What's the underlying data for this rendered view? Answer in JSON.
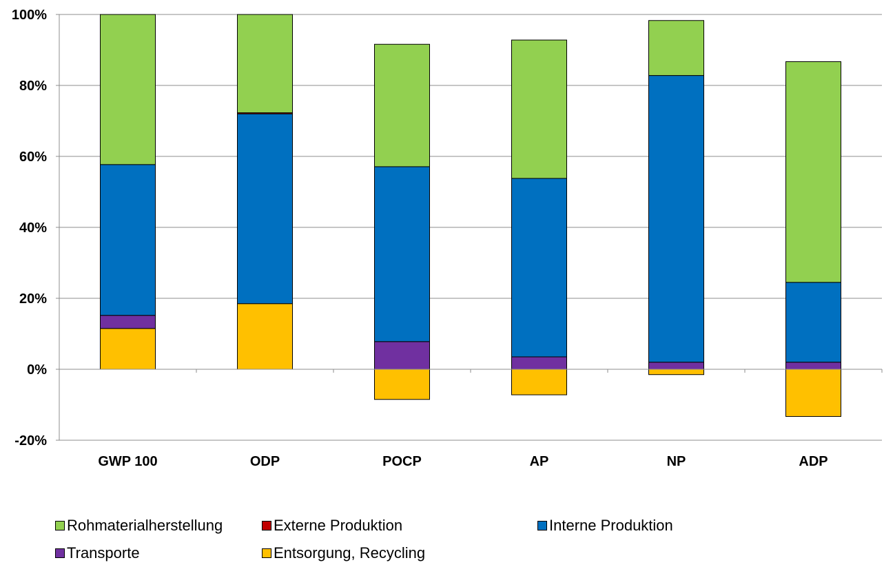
{
  "chart_data": {
    "type": "bar",
    "stacked": true,
    "categories": [
      "GWP 100",
      "ODP",
      "POCP",
      "AP",
      "NP",
      "ADP"
    ],
    "series": [
      {
        "name": "Entsorgung, Recycling",
        "color": "#FFC000",
        "values": [
          11.5,
          18.5,
          -8.5,
          -7.2,
          -1.5,
          -13.3
        ]
      },
      {
        "name": "Transporte",
        "color": "#7030A0",
        "values": [
          3.7,
          0.0,
          7.8,
          3.5,
          2.0,
          2.0
        ]
      },
      {
        "name": "Interne Produktion",
        "color": "#0070C0",
        "values": [
          42.5,
          53.5,
          49.3,
          50.3,
          80.8,
          22.5
        ]
      },
      {
        "name": "Externe Produktion",
        "color": "#C00000",
        "values": [
          0.0,
          0.3,
          0.0,
          0.0,
          0.0,
          0.0
        ]
      },
      {
        "name": "Rohmaterialherstellung",
        "color": "#92D050",
        "values": [
          42.3,
          27.7,
          34.5,
          39.0,
          15.5,
          62.2
        ]
      }
    ],
    "ylim": [
      -20,
      100
    ],
    "yticks": [
      -20,
      0,
      20,
      40,
      60,
      80,
      100
    ],
    "ytick_labels": [
      "-20%",
      "0%",
      "20%",
      "40%",
      "60%",
      "80%",
      "100%"
    ],
    "grid": true,
    "legend_position": "bottom",
    "legend_order": [
      "Rohmaterialherstellung",
      "Externe Produktion",
      "Interne Produktion",
      "Transporte",
      "Entsorgung, Recycling"
    ]
  }
}
